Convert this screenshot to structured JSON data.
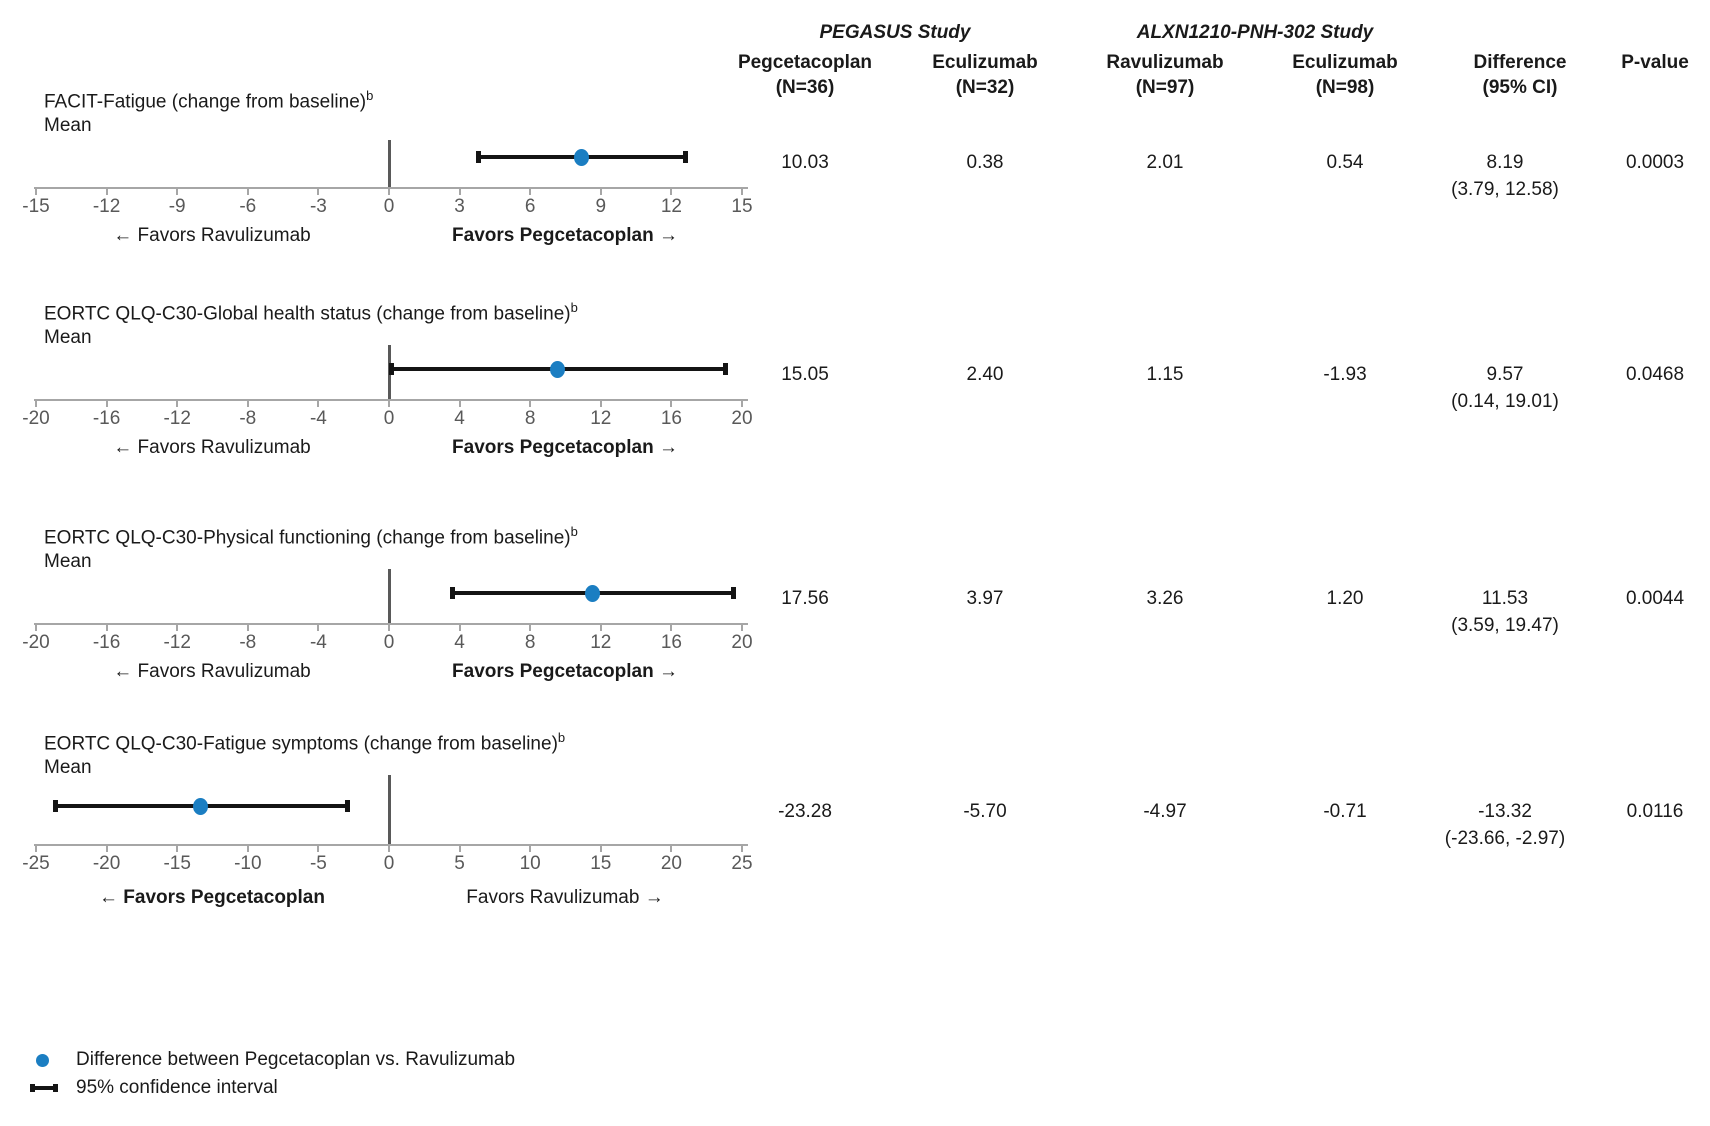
{
  "header": {
    "studies": [
      {
        "label": "PEGASUS Study"
      },
      {
        "label": "ALXN1210-PNH-302 Study"
      }
    ],
    "columns": [
      {
        "line1": "Pegcetacoplan",
        "line2": "(N=36)"
      },
      {
        "line1": "Eculizumab",
        "line2": "(N=32)"
      },
      {
        "line1": "Ravulizumab",
        "line2": "(N=97)"
      },
      {
        "line1": "Eculizumab",
        "line2": "(N=98)"
      },
      {
        "line1": "Difference",
        "line2": "(95% CI)"
      },
      {
        "line1": "P-value",
        "line2": ""
      }
    ]
  },
  "rows": [
    {
      "title": "FACIT-Fatigue (change from baseline)",
      "title_sup": "b",
      "stat_label": "Mean",
      "axis": {
        "min": -15,
        "max": 15,
        "step": 3,
        "ticks": [
          -15,
          -12,
          -9,
          -6,
          -3,
          0,
          3,
          6,
          9,
          12,
          15
        ]
      },
      "point": 8.19,
      "ci": [
        3.79,
        12.58
      ],
      "favors_left": {
        "text": "← Favors Ravulizumab",
        "bold": false
      },
      "favors_right": {
        "text": "Favors Pegcetacoplan →",
        "bold": true
      },
      "values": [
        "10.03",
        "0.38",
        "2.01",
        "0.54"
      ],
      "diff_line1": "8.19",
      "diff_line2": "(3.79, 12.58)",
      "pvalue": "0.0003"
    },
    {
      "title": "EORTC QLQ-C30-Global health status (change from baseline)",
      "title_sup": "b",
      "stat_label": "Mean",
      "axis": {
        "min": -20,
        "max": 20,
        "step": 4,
        "ticks": [
          -20,
          -16,
          -12,
          -8,
          -4,
          0,
          4,
          8,
          12,
          16,
          20
        ]
      },
      "point": 9.57,
      "ci": [
        0.14,
        19.01
      ],
      "favors_left": {
        "text": "← Favors Ravulizumab",
        "bold": false
      },
      "favors_right": {
        "text": "Favors Pegcetacoplan →",
        "bold": true
      },
      "values": [
        "15.05",
        "2.40",
        "1.15",
        "-1.93"
      ],
      "diff_line1": "9.57",
      "diff_line2": "(0.14, 19.01)",
      "pvalue": "0.0468"
    },
    {
      "title": "EORTC QLQ-C30-Physical functioning (change from baseline)",
      "title_sup": "b",
      "stat_label": "Mean",
      "axis": {
        "min": -20,
        "max": 20,
        "step": 4,
        "ticks": [
          -20,
          -16,
          -12,
          -8,
          -4,
          0,
          4,
          8,
          12,
          16,
          20
        ]
      },
      "point": 11.53,
      "ci": [
        3.59,
        19.47
      ],
      "favors_left": {
        "text": "← Favors Ravulizumab",
        "bold": false
      },
      "favors_right": {
        "text": "Favors Pegcetacoplan →",
        "bold": true
      },
      "values": [
        "17.56",
        "3.97",
        "3.26",
        "1.20"
      ],
      "diff_line1": "11.53",
      "diff_line2": "(3.59, 19.47)",
      "pvalue": "0.0044"
    },
    {
      "title": "EORTC QLQ-C30-Fatigue symptoms (change from baseline)",
      "title_sup": "b",
      "stat_label": "Mean",
      "axis": {
        "min": -25,
        "max": 25,
        "step": 5,
        "ticks": [
          -25,
          -20,
          -15,
          -10,
          -5,
          0,
          5,
          10,
          15,
          20,
          25
        ]
      },
      "point": -13.32,
      "ci": [
        -23.66,
        -2.97
      ],
      "favors_left": {
        "text": "← Favors Pegcetacoplan",
        "bold": true
      },
      "favors_right": {
        "text": "Favors Ravulizumab →",
        "bold": false
      },
      "values": [
        "-23.28",
        "-5.70",
        "-4.97",
        "-0.71"
      ],
      "diff_line1": "-13.32",
      "diff_line2": "(-23.66, -2.97)",
      "pvalue": "0.0116"
    }
  ],
  "legend": {
    "items": [
      {
        "symbol": "point-dot",
        "label": "Difference between Pegcetacoplan vs. Ravulizumab"
      },
      {
        "symbol": "ci-bar",
        "label": "95% confidence interval"
      }
    ]
  },
  "colors": {
    "point_dot": "#1b7ec2",
    "ci_bar": "#141414",
    "axis_line": "#a6a6a6",
    "tick_label": "#595959",
    "zero_line": "#595959",
    "text": "#1a1a1a"
  },
  "chart_data": [
    {
      "type": "scatter",
      "subtype": "forest-plot",
      "title": "FACIT-Fatigue (change from baseline)b — Mean",
      "series": [
        {
          "name": "Difference between Pegcetacoplan vs. Ravulizumab",
          "x": [
            8.19
          ],
          "ci95": [
            [
              3.79,
              12.58
            ]
          ]
        }
      ],
      "xlim": [
        -15,
        15
      ],
      "xticks": [
        -15,
        -12,
        -9,
        -6,
        -3,
        0,
        3,
        6,
        9,
        12,
        15
      ],
      "annotations": [
        "← Favors Ravulizumab",
        "Favors Pegcetacoplan →"
      ],
      "grid": false
    },
    {
      "type": "scatter",
      "subtype": "forest-plot",
      "title": "EORTC QLQ-C30-Global health status (change from baseline)b — Mean",
      "series": [
        {
          "name": "Difference between Pegcetacoplan vs. Ravulizumab",
          "x": [
            9.57
          ],
          "ci95": [
            [
              0.14,
              19.01
            ]
          ]
        }
      ],
      "xlim": [
        -20,
        20
      ],
      "xticks": [
        -20,
        -16,
        -12,
        -8,
        -4,
        0,
        4,
        8,
        12,
        16,
        20
      ],
      "annotations": [
        "← Favors Ravulizumab",
        "Favors Pegcetacoplan →"
      ],
      "grid": false
    },
    {
      "type": "scatter",
      "subtype": "forest-plot",
      "title": "EORTC QLQ-C30-Physical functioning (change from baseline)b — Mean",
      "series": [
        {
          "name": "Difference between Pegcetacoplan vs. Ravulizumab",
          "x": [
            11.53
          ],
          "ci95": [
            [
              3.59,
              19.47
            ]
          ]
        }
      ],
      "xlim": [
        -20,
        20
      ],
      "xticks": [
        -20,
        -16,
        -12,
        -8,
        -4,
        0,
        4,
        8,
        12,
        16,
        20
      ],
      "annotations": [
        "← Favors Ravulizumab",
        "Favors Pegcetacoplan →"
      ],
      "grid": false
    },
    {
      "type": "scatter",
      "subtype": "forest-plot",
      "title": "EORTC QLQ-C30-Fatigue symptoms (change from baseline)b — Mean",
      "series": [
        {
          "name": "Difference between Pegcetacoplan vs. Ravulizumab",
          "x": [
            -13.32
          ],
          "ci95": [
            [
              -23.66,
              -2.97
            ]
          ]
        }
      ],
      "xlim": [
        -25,
        25
      ],
      "xticks": [
        -25,
        -20,
        -15,
        -10,
        -5,
        0,
        5,
        10,
        15,
        20,
        25
      ],
      "annotations": [
        "← Favors Pegcetacoplan",
        "Favors Ravulizumab →"
      ],
      "grid": false
    },
    {
      "type": "table",
      "columns": [
        "PEGASUS Study — Pegcetacoplan (N=36)",
        "PEGASUS Study — Eculizumab (N=32)",
        "ALXN1210-PNH-302 Study — Ravulizumab (N=97)",
        "ALXN1210-PNH-302 Study — Eculizumab (N=98)",
        "Difference (95% CI)",
        "P-value"
      ],
      "rows": [
        [
          "10.03",
          "0.38",
          "2.01",
          "0.54",
          "8.19 (3.79, 12.58)",
          "0.0003"
        ],
        [
          "15.05",
          "2.40",
          "1.15",
          "-1.93",
          "9.57 (0.14, 19.01)",
          "0.0468"
        ],
        [
          "17.56",
          "3.97",
          "3.26",
          "1.20",
          "11.53 (3.59, 19.47)",
          "0.0044"
        ],
        [
          "-23.28",
          "-5.70",
          "-4.97",
          "-0.71",
          "-13.32 (-23.66, -2.97)",
          "0.0116"
        ]
      ]
    }
  ]
}
